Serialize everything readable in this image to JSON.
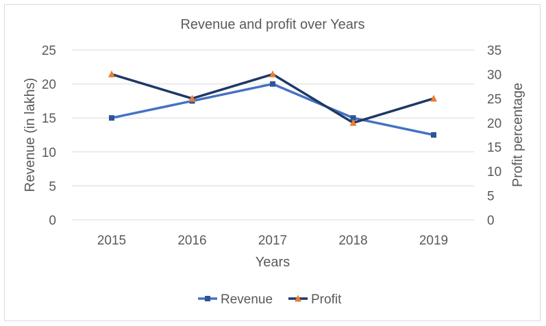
{
  "chart_data": {
    "type": "line",
    "title": "Revenue and profit over Years",
    "xlabel": "Years",
    "ylabel": "Revenue (in lakhs)",
    "y2label": "Profit percentage",
    "categories": [
      "2015",
      "2016",
      "2017",
      "2018",
      "2019"
    ],
    "ylim": [
      0,
      25
    ],
    "yticks": [
      0,
      5,
      10,
      15,
      20,
      25
    ],
    "y2lim": [
      0,
      35
    ],
    "y2ticks": [
      0,
      5,
      10,
      15,
      20,
      25,
      30,
      35
    ],
    "grid": true,
    "legend_position": "bottom",
    "series": [
      {
        "name": "Revenue",
        "axis": "left",
        "values": [
          15,
          17.5,
          20,
          15,
          12.5
        ],
        "line_color": "#4472C4",
        "marker": "square",
        "marker_color": "#2F5597"
      },
      {
        "name": "Profit",
        "axis": "right",
        "values": [
          30,
          25,
          30,
          20,
          25
        ],
        "line_color": "#1F3864",
        "marker": "triangle",
        "marker_color": "#ED7D31"
      }
    ]
  },
  "colors": {
    "gridline": "#d9d9d9",
    "text": "#595959",
    "border": "#d9d9d9"
  }
}
